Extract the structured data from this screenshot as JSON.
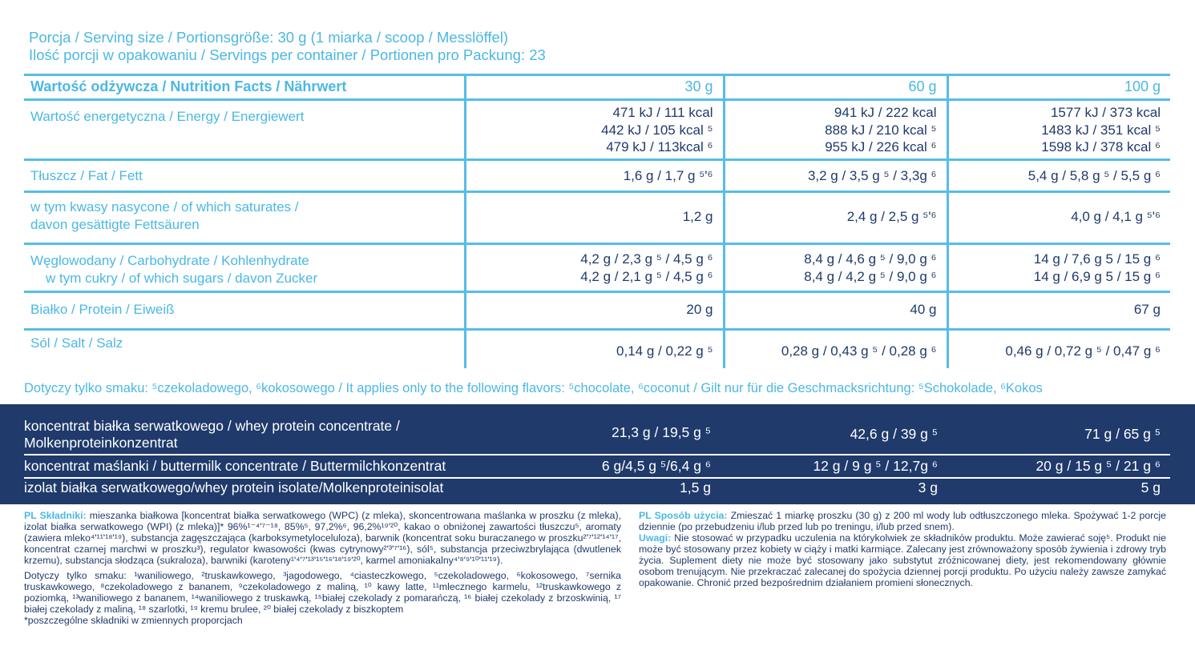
{
  "serving": {
    "line1": "Porcja / Serving size / Portionsgröße: 30 g (1 miarka / scoop / Messlöffel)",
    "line2": "Ilość porcji w opakowaniu / Servings per container / Portionen pro Packung: 23"
  },
  "nutrition": {
    "header": {
      "label": "Wartość odżywcza / Nutrition Facts / Nährwert",
      "cols": [
        "30 g",
        "60 g",
        "100 g"
      ]
    },
    "rows": [
      {
        "label": "Wartość energetyczna / Energy / Energiewert",
        "values": [
          "471 kJ / 111 kcal\n442 kJ / 105 kcal ⁵\n479 kJ / 113kcal ⁶",
          "941 kJ / 222 kcal\n888 kJ / 210 kcal ⁵\n955 kJ / 226 kcal ⁶",
          "1577 kJ / 373 kcal\n1483 kJ / 351 kcal ⁵\n1598 kJ / 378 kcal ⁶"
        ]
      },
      {
        "label": "Tłuszcz / Fat / Fett",
        "values": [
          "1,6 g / 1,7 g ⁵'⁶",
          "3,2 g / 3,5 g ⁵ / 3,3g ⁶",
          "5,4 g / 5,8 g ⁵ / 5,5 g ⁶"
        ]
      },
      {
        "label": "w tym kwasy nasycone / of which saturates /\ndavon gesättigte Fettsäuren",
        "values": [
          "1,2 g",
          "2,4 g / 2,5 g ⁵'⁶",
          "4,0 g / 4,1 g ⁵'⁶"
        ]
      },
      {
        "label": "Węglowodany / Carbohydrate / Kohlenhydrate",
        "sublabel": "w tym cukry / of which sugars / davon Zucker",
        "values": [
          "4,2 g / 2,3 g ⁵ / 4,5 g ⁶\n4,2 g / 2,1 g ⁵ / 4,5 g ⁶",
          "8,4 g / 4,6 g ⁵ / 9,0 g ⁶\n8,4 g / 4,2 g ⁵ / 9,0 g ⁶",
          "14 g / 7,6 g 5 / 15 g ⁶\n14 g / 6,9 g 5 / 15 g ⁶"
        ]
      },
      {
        "label": "Białko / Protein / Eiweiß",
        "values": [
          "20 g",
          "40 g",
          "67 g"
        ]
      },
      {
        "label": "Sól / Salt / Salz",
        "values": [
          "0,14 g / 0,22 g ⁵",
          "0,28 g / 0,43 g ⁵ / 0,28 g ⁶",
          "0,46 g / 0,72 g ⁵ / 0,47 g ⁶"
        ]
      }
    ]
  },
  "flavors_note": "Dotyczy tylko smaku: ⁵czekoladowego, ⁶kokosowego / It applies only to the following flavors: ⁵chocolate, ⁶coconut  / Gilt nur für die Geschmacksrichtung: ⁵Schokolade, ⁶Kokos",
  "composition": [
    {
      "label": "koncentrat białka serwatkowego / whey protein concentrate /\nMolkenproteinkonzentrat",
      "values": [
        "21,3 g / 19,5 g ⁵",
        "42,6 g / 39 g ⁵",
        "71 g / 65 g ⁵"
      ]
    },
    {
      "label": "koncentrat maślanki / buttermilk concentrate / Buttermilchkonzentrat",
      "values": [
        "6 g/4,5 g ⁵/6,4 g ⁶",
        "12 g / 9 g ⁵ / 12,7g ⁶",
        "20 g / 15 g ⁵ / 21 g ⁶"
      ]
    },
    {
      "label": "izolat białka serwatkowego/whey protein isolate/Molkenproteinisolat",
      "values": [
        "1,5 g",
        "3 g",
        "5 g"
      ]
    }
  ],
  "ingredients": {
    "title": "PL Składniki:",
    "text": " mieszanka białkowa [koncentrat białka serwatkowego (WPC) (z mleka), skoncentrowana maślanka w proszku (z mleka), izolat białka serwatkowego (WPI) (z mleka)]* 96%¹⁻⁴'⁷⁻¹⁸, 85%⁵, 97,2%⁶, 96,2%¹⁹'²⁰, kakao o obniżonej zawartości tłuszczu⁵, aromaty (zawiera mleko⁴'¹¹'¹⁸'¹⁹), substancja zagęszczająca (karboksymetyloceluloza), barwnik (koncentrat soku buraczanego w proszku²'⁷'¹²'¹⁴'¹⁷, koncentrat czarnej marchwi w proszku³), regulator kwasowości (kwas cytrynowy²'³'⁷'¹⁶), sól⁵, substancja przeciwzbrylająca (dwutlenek krzemu), substancja słodząca (sukraloza), barwniki (karoteny¹'⁴'⁷'¹³'¹⁵'¹⁶'¹⁸'¹⁹'²⁰, karmel amoniakalny⁴'⁸'⁹'¹⁰'¹¹'¹⁹).",
    "flavors": "Dotyczy tylko smaku: ¹waniliowego, ²truskawkowego, ³jagodowego, ⁴ciasteczkowego, ⁵czekoladowego, ⁶kokosowego, ⁷sernika truskawkowego, ⁸czekoladowego z bananem, ⁹czekoladowego z maliną, ¹⁰ kawy latte, ¹¹mlecznego karmelu, ¹²truskawkowego z poziomką, ¹³waniliowego z bananem, ¹⁴waniliowego z truskawką, ¹⁵białej czekolady z pomarańczą, ¹⁶ białej czekolady z brzoskwinią, ¹⁷ białej czekolady z maliną, ¹⁸ szarlotki, ¹⁹ kremu brulee, ²⁰ białej czekolady z biszkoptem",
    "footnote": "*poszczególne składniki w zmiennych proporcjach"
  },
  "usage": {
    "title": "PL Sposób użycia:",
    "text": " Zmieszać 1 miarkę proszku (30 g) z 200 ml wody lub odtłuszczonego mleka. Spożywać 1-2 porcje dziennie (po przebudzeniu i/lub przed lub po treningu, i/lub przed snem).",
    "notes_title": "Uwagi:",
    "notes_text": " Nie stosować w przypadku uczulenia na którykolwiek ze składników produktu. Może zawierać soję⁵. Produkt nie może być stosowany przez kobiety w ciąży i matki karmiące. Zalecany jest zrównoważony sposób żywienia i zdrowy tryb życia. Suplement diety nie może być stosowany jako substytut zróżnicowanej diety, jest rekomendowany głównie osobom trenującym. Nie przekraczać zalecanej do spożycia dziennej porcji produktu.  Po użyciu należy zawsze zamykać opakowanie. Chronić przed bezpośrednim działaniem promieni słonecznych."
  },
  "colors": {
    "accent": "#4bb8e3",
    "navy": "#1f3a6b"
  }
}
